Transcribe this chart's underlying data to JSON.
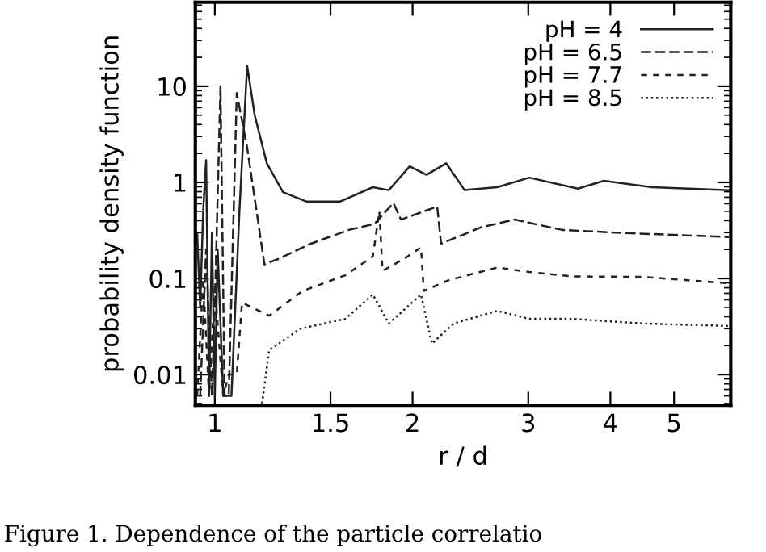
{
  "chart_data": {
    "type": "line",
    "xlabel": "r / d",
    "ylabel": "probability density function",
    "log": "xy",
    "xlim": [
      0.934,
      6.1
    ],
    "ylim": [
      0.0048,
      75
    ],
    "xticks": [
      1,
      1.5,
      2,
      3,
      4,
      5
    ],
    "yticks": [
      0.01,
      0.1,
      1,
      10
    ],
    "legend": "top right",
    "grid": false,
    "annotations": [
      "Figure 1. Dependence of the particle correlatio"
    ],
    "series": [
      {
        "name": "pH = 4",
        "color": "#222222",
        "line_style": "solid",
        "x": [
          0.94,
          0.95,
          0.96,
          0.97,
          0.98,
          0.99,
          1.0,
          1.01,
          1.03,
          1.06,
          1.09,
          1.12,
          1.15,
          1.2,
          1.27,
          1.38,
          1.55,
          1.74,
          1.84,
          1.98,
          2.1,
          2.25,
          2.4,
          2.69,
          3.01,
          3.57,
          3.91,
          4.63,
          6.06
        ],
        "values": [
          0.3,
          0.05,
          0.5,
          1.7,
          0.006,
          0.3,
          0.006,
          0.2,
          0.006,
          0.006,
          0.5,
          16.4,
          5.0,
          1.58,
          0.79,
          0.63,
          0.63,
          0.89,
          0.83,
          1.47,
          1.2,
          1.58,
          0.83,
          0.89,
          1.12,
          0.86,
          1.04,
          0.89,
          0.83
        ]
      },
      {
        "name": "pH = 6.5",
        "color": "#222222",
        "line_style": "dashed",
        "x": [
          0.95,
          0.97,
          0.99,
          1.0,
          1.02,
          1.035,
          1.05,
          1.08,
          1.12,
          1.19,
          1.25,
          1.4,
          1.6,
          1.75,
          1.87,
          1.92,
          2.18,
          2.21,
          2.54,
          2.86,
          3.38,
          4.07,
          6.06
        ],
        "values": [
          0.006,
          0.2,
          0.006,
          0.05,
          10,
          0.006,
          0.006,
          8.5,
          2.3,
          0.14,
          0.16,
          0.23,
          0.32,
          0.37,
          0.61,
          0.41,
          0.56,
          0.23,
          0.34,
          0.41,
          0.32,
          0.3,
          0.27
        ]
      },
      {
        "name": "pH = 7.7",
        "color": "#222222",
        "line_style": "shortdash",
        "x": [
          0.94,
          0.96,
          0.98,
          1.0,
          1.03,
          1.05,
          1.08,
          1.1,
          1.21,
          1.36,
          1.58,
          1.74,
          1.78,
          1.8,
          1.94,
          2.06,
          2.08,
          2.27,
          2.69,
          3.01,
          3.5,
          4.48,
          6.06
        ],
        "values": [
          0.006,
          0.1,
          0.006,
          0.08,
          0.006,
          0.01,
          0.01,
          0.056,
          0.041,
          0.074,
          0.108,
          0.17,
          0.5,
          0.12,
          0.16,
          0.21,
          0.074,
          0.096,
          0.13,
          0.117,
          0.105,
          0.104,
          0.089
        ]
      },
      {
        "name": "pH = 8.5",
        "color": "#222222",
        "line_style": "dotted",
        "x": [
          1.18,
          1.21,
          1.35,
          1.58,
          1.74,
          1.84,
          2.06,
          2.14,
          2.31,
          2.69,
          3.01,
          3.5,
          4.48,
          6.06
        ],
        "values": [
          0.005,
          0.018,
          0.03,
          0.038,
          0.068,
          0.034,
          0.068,
          0.021,
          0.034,
          0.046,
          0.038,
          0.038,
          0.034,
          0.032
        ]
      }
    ]
  }
}
